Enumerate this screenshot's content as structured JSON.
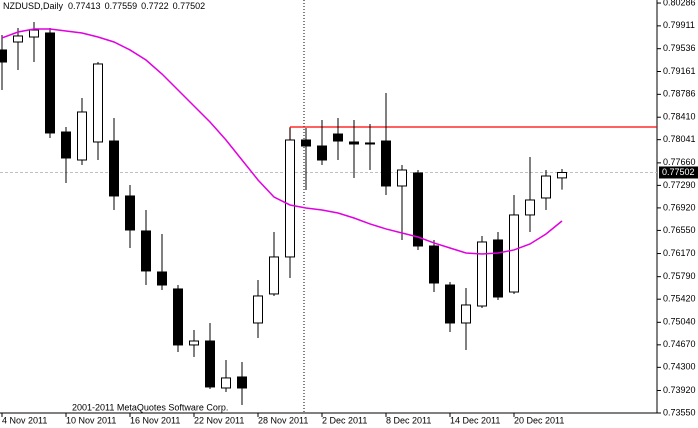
{
  "chart_data": {
    "type": "candlestick",
    "title": "NZDUSD,Daily",
    "annotation": "2001-2011 MetaQuotes Software Corp.",
    "categories": [
      "4 Nov 2011",
      null,
      null,
      null,
      "10 Nov 2011",
      null,
      null,
      null,
      "16 Nov 2011",
      null,
      null,
      null,
      "22 Nov 2011",
      null,
      null,
      null,
      "28 Nov 2011",
      null,
      null,
      null,
      "2 Dec 2011",
      null,
      null,
      null,
      "8 Dec 2011",
      null,
      null,
      null,
      "14 Dec 2011",
      null,
      null,
      null,
      "20 Dec 2011",
      null,
      null,
      null
    ],
    "open": [
      0.79515,
      0.79646,
      0.79728,
      0.79794,
      0.78167,
      0.77707,
      0.78003,
      0.78019,
      0.77116,
      0.76541,
      0.75867,
      0.75588,
      0.74668,
      0.74733,
      0.73961,
      0.74142,
      0.75029,
      0.75506,
      0.76114,
      0.78036,
      0.77937,
      0.78134,
      0.78003,
      0.77987,
      0.78019,
      0.7728,
      0.77494,
      0.76294,
      0.75653,
      0.75029,
      0.75308,
      0.76393,
      0.75538,
      0.76804,
      0.77083,
      0.77413
    ],
    "high": [
      0.79761,
      0.79876,
      0.79975,
      0.79876,
      0.78249,
      0.78726,
      0.79317,
      0.78397,
      0.77296,
      0.76886,
      0.76491,
      0.75653,
      0.74914,
      0.75029,
      0.74421,
      0.74388,
      0.75736,
      0.76524,
      0.78233,
      0.78233,
      0.78364,
      0.78397,
      0.78364,
      0.78299,
      0.78808,
      0.77625,
      0.77543,
      0.76393,
      0.75703,
      0.75604,
      0.76459,
      0.76524,
      0.77132,
      0.77757,
      0.77543,
      0.77559
    ],
    "low": [
      0.78857,
      0.79186,
      0.79317,
      0.78069,
      0.77329,
      0.77625,
      0.77707,
      0.76886,
      0.76261,
      0.75653,
      0.75571,
      0.74553,
      0.74471,
      0.73945,
      0.73895,
      0.73682,
      0.74783,
      0.75473,
      0.75769,
      0.77214,
      0.77625,
      0.77707,
      0.77412,
      0.77543,
      0.77132,
      0.76393,
      0.76229,
      0.75538,
      0.74881,
      0.74586,
      0.75276,
      0.75407,
      0.75506,
      0.76524,
      0.76886,
      0.7722
    ],
    "close": [
      0.79317,
      0.79745,
      0.79843,
      0.78151,
      0.7774,
      0.78496,
      0.79285,
      0.77116,
      0.76557,
      0.75884,
      0.75653,
      0.74668,
      0.74733,
      0.73978,
      0.74126,
      0.73961,
      0.75473,
      0.76114,
      0.78036,
      0.77937,
      0.77707,
      0.78019,
      0.7797,
      0.7797,
      0.7728,
      0.77543,
      0.76294,
      0.75686,
      0.75029,
      0.75325,
      0.7636,
      0.75456,
      0.76804,
      0.7705,
      0.77444,
      0.77502
    ],
    "up_color": "#ffffff",
    "down_color": "#000000",
    "ma": {
      "color": "#e000e0",
      "values": [
        0.79712,
        0.7981,
        0.7986,
        0.7986,
        0.79827,
        0.79794,
        0.79728,
        0.79646,
        0.79515,
        0.7935,
        0.7912,
        0.78857,
        0.78594,
        0.78332,
        0.78036,
        0.77707,
        0.77379,
        0.77099,
        0.76968,
        0.76919,
        0.76886,
        0.76836,
        0.76754,
        0.76656,
        0.76574,
        0.76508,
        0.76442,
        0.76344,
        0.76261,
        0.76179,
        0.76163,
        0.76179,
        0.76229,
        0.76327,
        0.76491,
        0.76705
      ]
    },
    "hline": {
      "value": 0.78249,
      "color": "#ff0000"
    },
    "ylim": [
      0.7355,
      0.80336
    ],
    "yticks": [
      0.80286,
      0.79911,
      0.79536,
      0.79161,
      0.78786,
      {
        "value": 0.7841,
        "label": "0.78410"
      },
      0.78041,
      {
        "value": 0.7766,
        "label": "0.77660"
      },
      {
        "value": 0.7729,
        "label": "0.77290"
      },
      {
        "value": 0.7692,
        "label": "0.76920"
      },
      {
        "value": 0.7655,
        "label": "0.76550"
      },
      {
        "value": 0.7617,
        "label": "0.76170"
      },
      {
        "value": 0.7579,
        "label": "0.75790"
      },
      {
        "value": 0.7542,
        "label": "0.75420"
      },
      {
        "value": 0.7504,
        "label": "0.75040"
      },
      {
        "value": 0.7467,
        "label": "0.74670"
      },
      {
        "value": 0.743,
        "label": "0.74300"
      },
      {
        "value": 0.7392,
        "label": "0.73920"
      },
      {
        "value": 0.7355,
        "label": "0.73550"
      }
    ]
  }
}
